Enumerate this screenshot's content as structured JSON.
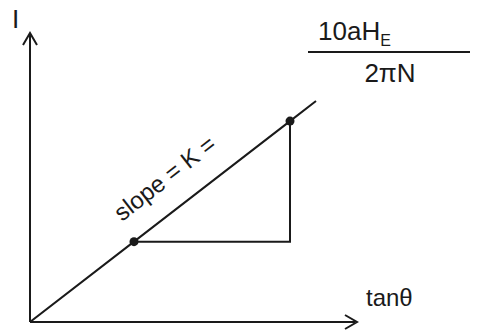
{
  "chart_data": {
    "type": "line",
    "x_label": "tanθ",
    "y_label": "I",
    "annotation": {
      "text": "slope = K =",
      "numerator": "10aHE",
      "denominator": "2πN"
    },
    "xlim": [
      0,
      10
    ],
    "ylim": [
      0,
      10
    ],
    "tick_labels": false,
    "grid": false,
    "series": [
      {
        "type": "line",
        "x": [
          0,
          3.2,
          8,
          8.8
        ],
        "values": [
          0,
          2.8,
          7,
          7.7
        ],
        "color": "#1a1a1a",
        "marker": "none",
        "line_style": "solid"
      },
      {
        "type": "line",
        "x": [
          3.2,
          8,
          8
        ],
        "values": [
          2.8,
          2.8,
          7
        ],
        "color": "#1a1a1a",
        "marker": "none",
        "line_style": "solid"
      },
      {
        "type": "scatter",
        "x": [
          3.2,
          8
        ],
        "values": [
          2.8,
          7
        ],
        "color": "#1a1a1a",
        "marker": "circle"
      }
    ]
  }
}
